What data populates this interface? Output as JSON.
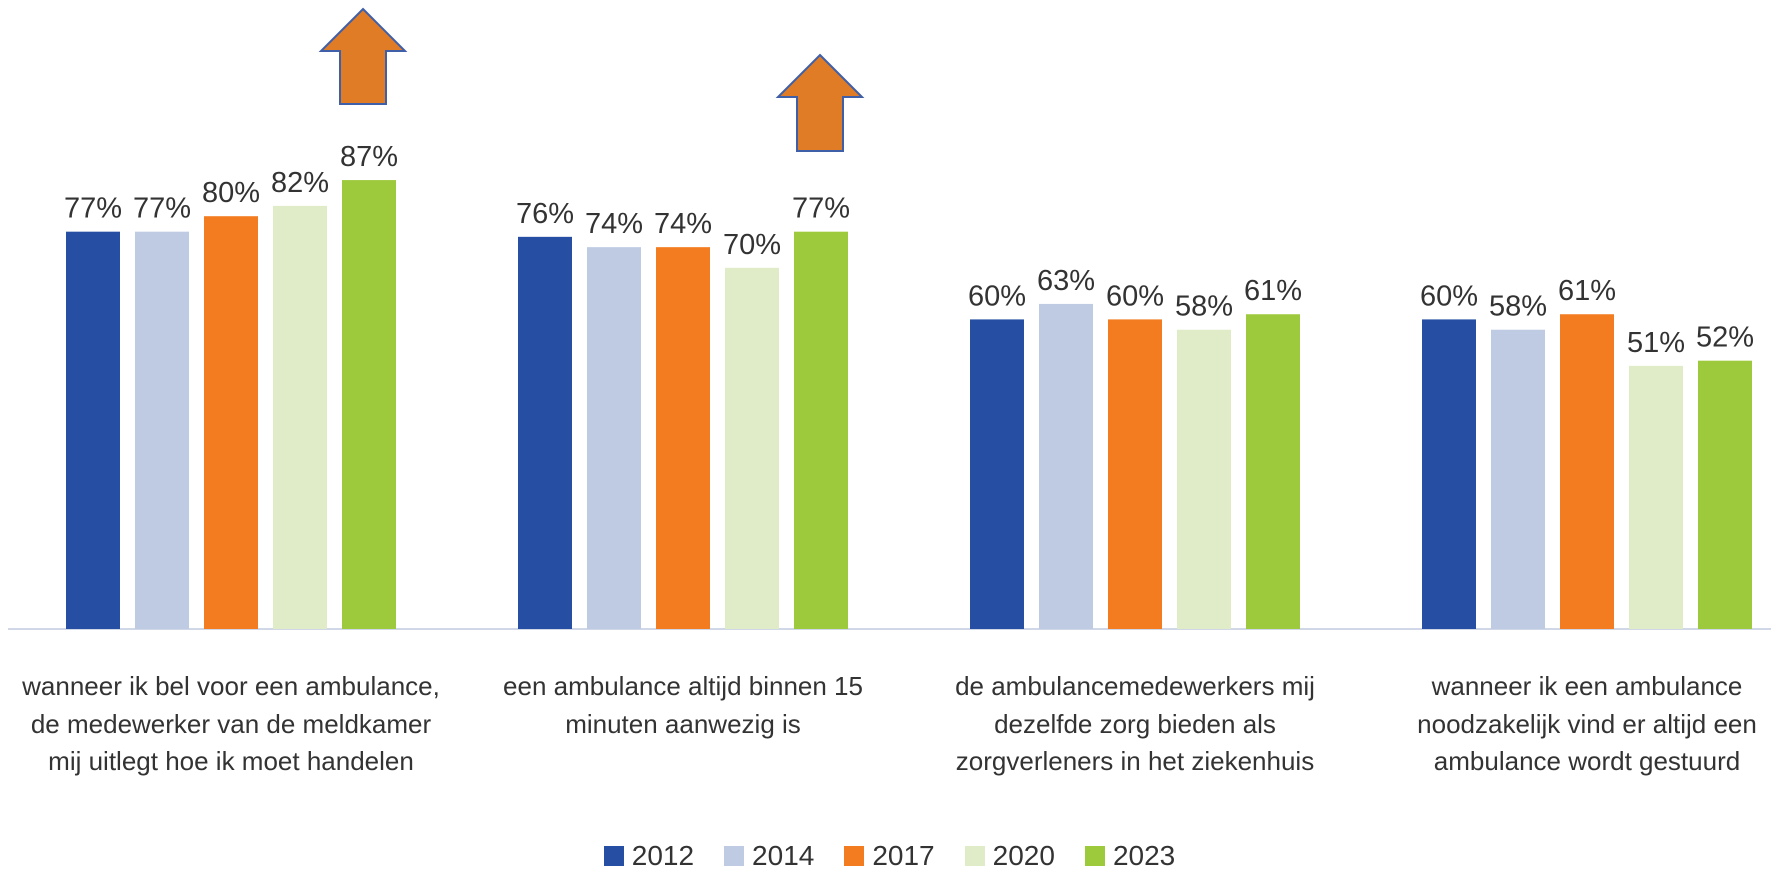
{
  "chart_data": {
    "type": "bar",
    "categories": [
      "wanneer ik bel voor een ambulance, de medewerker van de meldkamer mij uitlegt hoe ik moet handelen",
      "een ambulance altijd binnen 15 minuten aanwezig is",
      "de ambulancemedewerkers mij dezelfde zorg bieden als zorgverleners in het ziekenhuis",
      "wanneer ik een ambulance noodzakelijk vind er altijd een ambulance wordt gestuurd"
    ],
    "series": [
      {
        "name": "2012",
        "color": "#264fa3",
        "values": [
          77,
          76,
          60,
          60
        ],
        "value_labels": [
          "77%",
          "76%",
          "60%",
          "60%"
        ]
      },
      {
        "name": "2014",
        "color": "#bfcbe3",
        "values": [
          77,
          74,
          63,
          58
        ],
        "value_labels": [
          "77%",
          "74%",
          "63%",
          "58%"
        ]
      },
      {
        "name": "2017",
        "color": "#f47c20",
        "values": [
          80,
          74,
          60,
          61
        ],
        "value_labels": [
          "80%",
          "74%",
          "60%",
          "61%"
        ]
      },
      {
        "name": "2020",
        "color": "#e0ecc8",
        "values": [
          82,
          70,
          58,
          51
        ],
        "value_labels": [
          "82%",
          "70%",
          "58%",
          "51%"
        ]
      },
      {
        "name": "2023",
        "color": "#9dc93c",
        "values": [
          87,
          77,
          61,
          52
        ],
        "value_labels": [
          "87%",
          "77%",
          "61%",
          "52%"
        ]
      }
    ],
    "ylim": [
      0,
      100
    ],
    "legend": "bottom"
  }
}
